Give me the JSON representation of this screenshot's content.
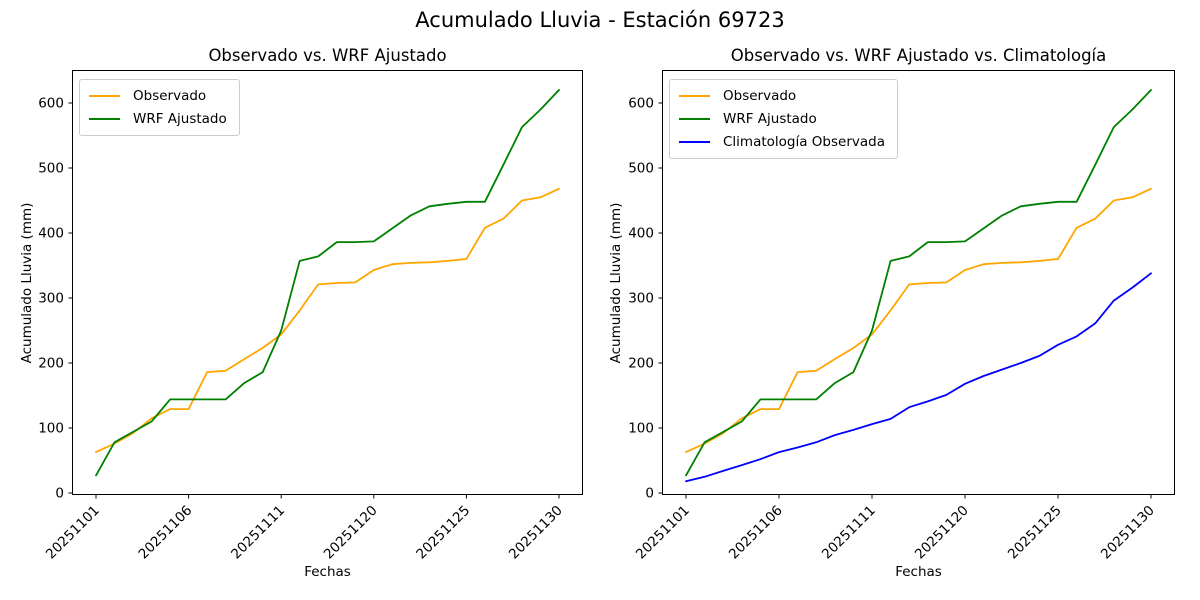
{
  "figure": {
    "title": "Acumulado Lluvia - Estación 69723",
    "background": "#ffffff",
    "text_color": "#000000"
  },
  "chart_data": [
    {
      "type": "line",
      "title": "Observado vs. WRF Ajustado",
      "xlabel": "Fechas",
      "ylabel": "Acumulado Lluvia (mm)",
      "grid": false,
      "legend_position": "upper left",
      "ylim": [
        -15,
        650
      ],
      "yticks": [
        0,
        100,
        200,
        300,
        400,
        500,
        600
      ],
      "xtick_indices": [
        0,
        5,
        10,
        15,
        20,
        25
      ],
      "x": [
        "20251101",
        "20251102",
        "20251103",
        "20251104",
        "20251105",
        "20251106",
        "20251107",
        "20251108",
        "20251109",
        "20251110",
        "20251111",
        "20251116",
        "20251117",
        "20251118",
        "20251119",
        "20251120",
        "20251121",
        "20251122",
        "20251123",
        "20251124",
        "20251125",
        "20251126",
        "20251127",
        "20251128",
        "20251129",
        "20251130"
      ],
      "series": [
        {
          "name": "Observado",
          "color": "#FFA500",
          "values": [
            63,
            76,
            92,
            115,
            129,
            129,
            186,
            188,
            206,
            223,
            244,
            281,
            321,
            323,
            324,
            343,
            352,
            354,
            355,
            357,
            360,
            408,
            422,
            450,
            455,
            468
          ]
        },
        {
          "name": "WRF Ajustado",
          "color": "#008000",
          "values": [
            27,
            78,
            94,
            110,
            144,
            144,
            144,
            144,
            169,
            186,
            250,
            357,
            364,
            386,
            386,
            387,
            407,
            427,
            441,
            445,
            448,
            448,
            505,
            563,
            590,
            620
          ]
        }
      ]
    },
    {
      "type": "line",
      "title": "Observado vs. WRF Ajustado vs. Climatología",
      "xlabel": "Fechas",
      "ylabel": "Acumulado Lluvia (mm)",
      "grid": false,
      "legend_position": "upper left",
      "ylim": [
        -15,
        650
      ],
      "yticks": [
        0,
        100,
        200,
        300,
        400,
        500,
        600
      ],
      "xtick_indices": [
        0,
        5,
        10,
        15,
        20,
        25
      ],
      "x": [
        "20251101",
        "20251102",
        "20251103",
        "20251104",
        "20251105",
        "20251106",
        "20251107",
        "20251108",
        "20251109",
        "20251110",
        "20251111",
        "20251116",
        "20251117",
        "20251118",
        "20251119",
        "20251120",
        "20251121",
        "20251122",
        "20251123",
        "20251124",
        "20251125",
        "20251126",
        "20251127",
        "20251128",
        "20251129",
        "20251130"
      ],
      "series": [
        {
          "name": "Observado",
          "color": "#FFA500",
          "values": [
            63,
            76,
            92,
            115,
            129,
            129,
            186,
            188,
            206,
            223,
            244,
            281,
            321,
            323,
            324,
            343,
            352,
            354,
            355,
            357,
            360,
            408,
            422,
            450,
            455,
            468
          ]
        },
        {
          "name": "WRF Ajustado",
          "color": "#008000",
          "values": [
            27,
            78,
            94,
            110,
            144,
            144,
            144,
            144,
            169,
            186,
            250,
            357,
            364,
            386,
            386,
            387,
            407,
            427,
            441,
            445,
            448,
            448,
            505,
            563,
            590,
            620
          ]
        },
        {
          "name": "Climatología Observada",
          "color": "#0000FF",
          "values": [
            18,
            25,
            34,
            43,
            52,
            63,
            70,
            78,
            89,
            97,
            106,
            114,
            132,
            141,
            151,
            168,
            180,
            190,
            200,
            211,
            228,
            241,
            261,
            296,
            316,
            338
          ]
        }
      ]
    }
  ]
}
